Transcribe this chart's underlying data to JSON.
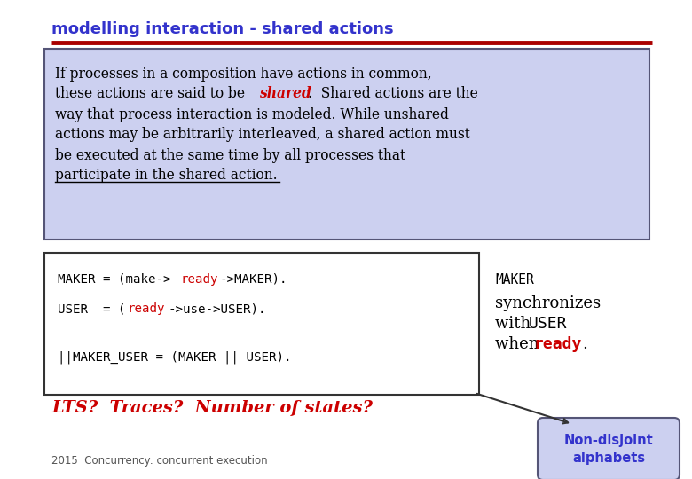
{
  "title": "modelling interaction - shared actions",
  "title_color": "#3333cc",
  "title_fontsize": 13,
  "bg_color": "#ffffff",
  "red_line_color": "#aa0000",
  "blue_box_bg": "#ccd0f0",
  "blue_box_border": "#555577",
  "code_box_bg": "#ffffff",
  "code_box_border": "#333333",
  "bubble_bg": "#ccd0f0",
  "bubble_border": "#555577",
  "bubble_text_color": "#3333cc",
  "bubble_text1": "Non-disjoint",
  "bubble_text2": "alphabets",
  "lts_text": "LTS?  Traces?  Number of states?",
  "lts_color": "#cc0000",
  "footer_text": "2015  Concurrency: concurrent execution",
  "footer_color": "#555555",
  "red_color": "#cc0000",
  "black_color": "#000000"
}
